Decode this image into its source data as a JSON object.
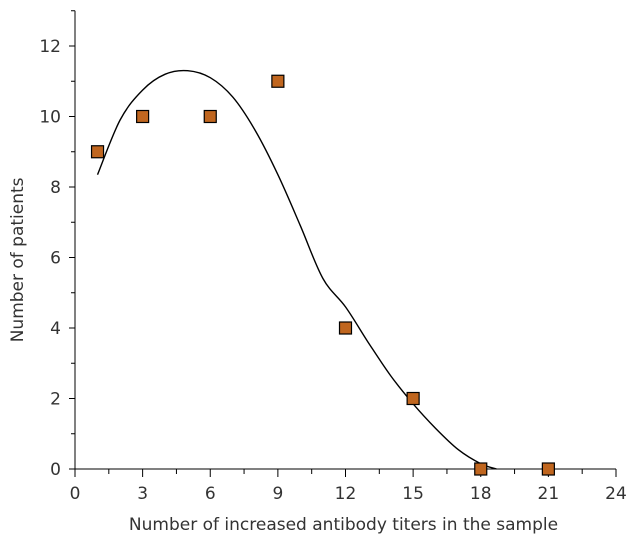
{
  "chart_data": {
    "type": "scatter",
    "title": "",
    "xlabel": "Number of increased antibody titers in the sample",
    "ylabel": "Number of patients",
    "xlim": [
      0,
      24
    ],
    "ylim": [
      0,
      13
    ],
    "x_ticks": [
      0,
      3,
      6,
      9,
      12,
      15,
      18,
      21,
      24
    ],
    "y_ticks": [
      0,
      2,
      4,
      6,
      8,
      10,
      12
    ],
    "grid": false,
    "legend": "none",
    "series": [
      {
        "type": "scatter",
        "marker": "square",
        "color": "#c0661f",
        "points": [
          {
            "x": 1,
            "y": 9
          },
          {
            "x": 3,
            "y": 10
          },
          {
            "x": 6,
            "y": 10
          },
          {
            "x": 9,
            "y": 11
          },
          {
            "x": 12,
            "y": 4
          },
          {
            "x": 15,
            "y": 2
          },
          {
            "x": 18,
            "y": 0
          },
          {
            "x": 21,
            "y": 0
          }
        ]
      },
      {
        "type": "line",
        "style": "fitted curve",
        "color": "#000000",
        "points": [
          {
            "x": 1,
            "y": 8.35
          },
          {
            "x": 2,
            "y": 9.9
          },
          {
            "x": 3,
            "y": 10.75
          },
          {
            "x": 4,
            "y": 11.2
          },
          {
            "x": 5,
            "y": 11.3
          },
          {
            "x": 6,
            "y": 11.1
          },
          {
            "x": 7,
            "y": 10.55
          },
          {
            "x": 8,
            "y": 9.6
          },
          {
            "x": 9,
            "y": 8.35
          },
          {
            "x": 10,
            "y": 6.9
          },
          {
            "x": 11,
            "y": 5.4
          },
          {
            "x": 12,
            "y": 4.6
          },
          {
            "x": 13,
            "y": 3.6
          },
          {
            "x": 14,
            "y": 2.65
          },
          {
            "x": 15,
            "y": 1.85
          },
          {
            "x": 16,
            "y": 1.15
          },
          {
            "x": 17,
            "y": 0.55
          },
          {
            "x": 18,
            "y": 0.15
          },
          {
            "x": 18.7,
            "y": 0
          }
        ]
      }
    ]
  }
}
